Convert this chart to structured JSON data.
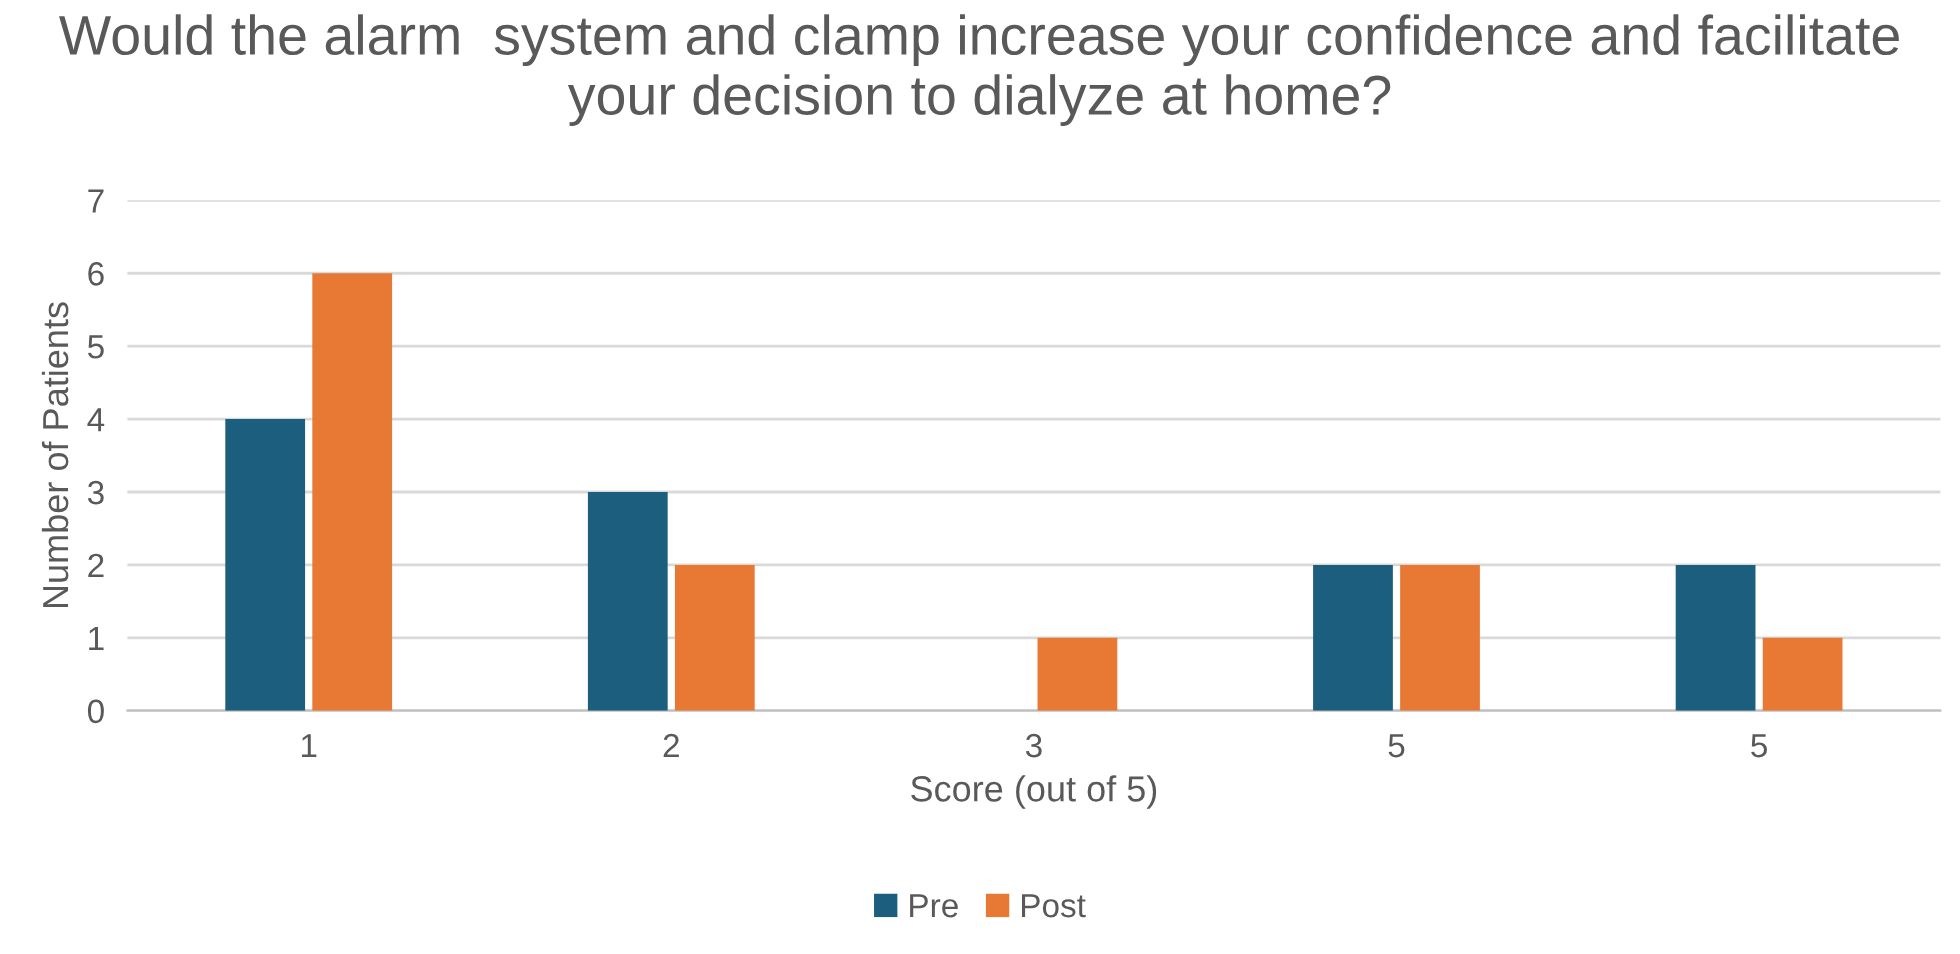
{
  "chart_data": {
    "type": "bar",
    "title": "Would the alarm  system and clamp increase your confidence and facilitate your decision to dialyze at home?",
    "xlabel": "Score (out of 5)",
    "ylabel": "Number of Patients",
    "categories": [
      "1",
      "2",
      "3",
      "5",
      "5"
    ],
    "series": [
      {
        "name": "Pre",
        "color": "#1b5e7e",
        "values": [
          4,
          3,
          0,
          2,
          2
        ]
      },
      {
        "name": "Post",
        "color": "#e87935",
        "values": [
          6,
          2,
          1,
          2,
          1
        ]
      }
    ],
    "ylim": [
      0,
      7
    ],
    "yticks": [
      0,
      1,
      2,
      3,
      4,
      5,
      6,
      7
    ],
    "grid": "y",
    "legend": "bottom"
  }
}
